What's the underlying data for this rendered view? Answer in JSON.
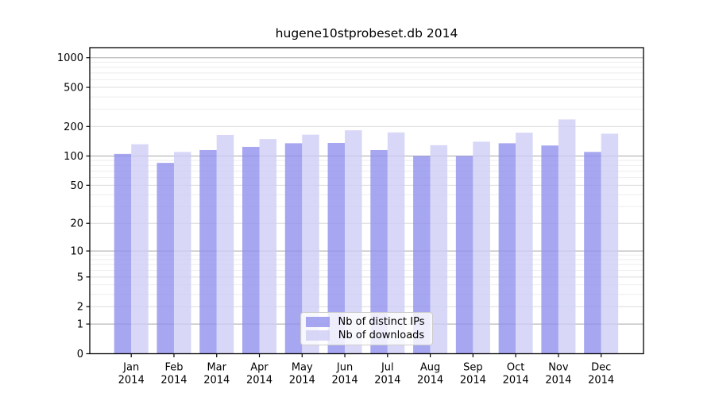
{
  "figure": {
    "background": "#ffffff"
  },
  "chart_data": {
    "type": "bar",
    "title": "hugene10stprobeset.db 2014",
    "xlabel": "",
    "ylabel": "",
    "scale": "log1p",
    "grid": true,
    "legend_position": "bottom-center",
    "categories": [
      {
        "month": "Jan",
        "year": "2014"
      },
      {
        "month": "Feb",
        "year": "2014"
      },
      {
        "month": "Mar",
        "year": "2014"
      },
      {
        "month": "Apr",
        "year": "2014"
      },
      {
        "month": "May",
        "year": "2014"
      },
      {
        "month": "Jun",
        "year": "2014"
      },
      {
        "month": "Jul",
        "year": "2014"
      },
      {
        "month": "Aug",
        "year": "2014"
      },
      {
        "month": "Sep",
        "year": "2014"
      },
      {
        "month": "Oct",
        "year": "2014"
      },
      {
        "month": "Nov",
        "year": "2014"
      },
      {
        "month": "Dec",
        "year": "2014"
      }
    ],
    "series": [
      {
        "name": "Nb of distinct IPs",
        "color": "#9190ec",
        "values": [
          105,
          85,
          115,
          124,
          135,
          136,
          115,
          100,
          100,
          135,
          128,
          110
        ]
      },
      {
        "name": "Nb of downloads",
        "color": "#cecdf5",
        "values": [
          132,
          110,
          164,
          149,
          165,
          183,
          174,
          129,
          140,
          173,
          236,
          169
        ]
      }
    ],
    "bar_opacity": 0.8,
    "yticks": [
      1000,
      500,
      200,
      100,
      50,
      20,
      10,
      5,
      2,
      1,
      0
    ],
    "ylim": [
      0,
      1250
    ],
    "colors": {
      "grid_major": "#a8a8a8",
      "grid_mid": "#dcdcdc",
      "grid_minor": "#eeeeee",
      "spine": "#000000",
      "tick_label": "#000000"
    }
  }
}
